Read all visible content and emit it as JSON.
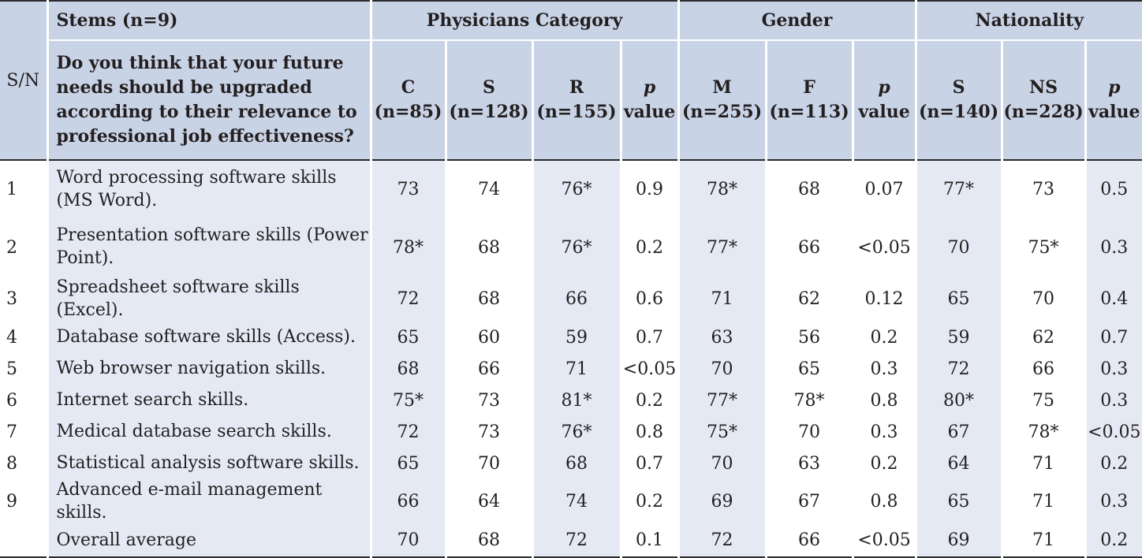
{
  "header": {
    "sn": "S/N",
    "stems": "Stems (n=9)",
    "question": "Do you think that your future needs should be upgraded according to their relevance to professional job effectiveness?",
    "groups": [
      "Physicians Category",
      "Gender",
      "Nationality"
    ],
    "columns": [
      {
        "code": "C",
        "n": "(n=85)"
      },
      {
        "code": "S",
        "n": "(n=128)"
      },
      {
        "code": "R",
        "n": "(n=155)"
      },
      {
        "code": "p",
        "n": "value"
      },
      {
        "code": "M",
        "n": "(n=255)"
      },
      {
        "code": "F",
        "n": "(n=113)"
      },
      {
        "code": "p",
        "n": "value"
      },
      {
        "code": "S",
        "n": "(n=140)"
      },
      {
        "code": "NS",
        "n": "(n=228)"
      },
      {
        "code": "p",
        "n": "value"
      }
    ]
  },
  "rows": [
    {
      "sn": "1",
      "stem": "Word processing software skills (MS Word).",
      "values": [
        "73",
        "74",
        "76*",
        "0.9",
        "78*",
        "68",
        "0.07",
        "77*",
        "73",
        "0.5"
      ]
    },
    {
      "sn": "2",
      "stem": "Presentation software skills (Power Point).",
      "values": [
        "78*",
        "68",
        "76*",
        "0.2",
        "77*",
        "66",
        "<0.05",
        "70",
        "75*",
        "0.3"
      ]
    },
    {
      "sn": "3",
      "stem": "Spreadsheet software skills (Excel).",
      "values": [
        "72",
        "68",
        "66",
        "0.6",
        "71",
        "62",
        "0.12",
        "65",
        "70",
        "0.4"
      ]
    },
    {
      "sn": "4",
      "stem": "Database software skills (Access).",
      "values": [
        "65",
        "60",
        "59",
        "0.7",
        "63",
        "56",
        "0.2",
        "59",
        "62",
        "0.7"
      ]
    },
    {
      "sn": "5",
      "stem": "Web browser navigation skills.",
      "values": [
        "68",
        "66",
        "71",
        "<0.05",
        "70",
        "65",
        "0.3",
        "72",
        "66",
        "0.3"
      ]
    },
    {
      "sn": "6",
      "stem": "Internet search skills.",
      "values": [
        "75*",
        "73",
        "81*",
        "0.2",
        "77*",
        "78*",
        "0.8",
        "80*",
        "75",
        "0.3"
      ]
    },
    {
      "sn": "7",
      "stem": "Medical database search skills.",
      "values": [
        "72",
        "73",
        "76*",
        "0.8",
        "75*",
        "70",
        "0.3",
        "67",
        "78*",
        "<0.05"
      ]
    },
    {
      "sn": "8",
      "stem": "Statistical analysis software skills.",
      "values": [
        "65",
        "70",
        "68",
        "0.7",
        "70",
        "63",
        "0.2",
        "64",
        "71",
        "0.2"
      ]
    },
    {
      "sn": "9",
      "stem": "Advanced e-mail management skills.",
      "values": [
        "66",
        "64",
        "74",
        "0.2",
        "69",
        "67",
        "0.8",
        "65",
        "71",
        "0.3"
      ]
    },
    {
      "sn": "",
      "stem": "Overall average",
      "values": [
        "70",
        "68",
        "72",
        "0.1",
        "72",
        "66",
        "<0.05",
        "69",
        "71",
        "0.2"
      ]
    }
  ]
}
